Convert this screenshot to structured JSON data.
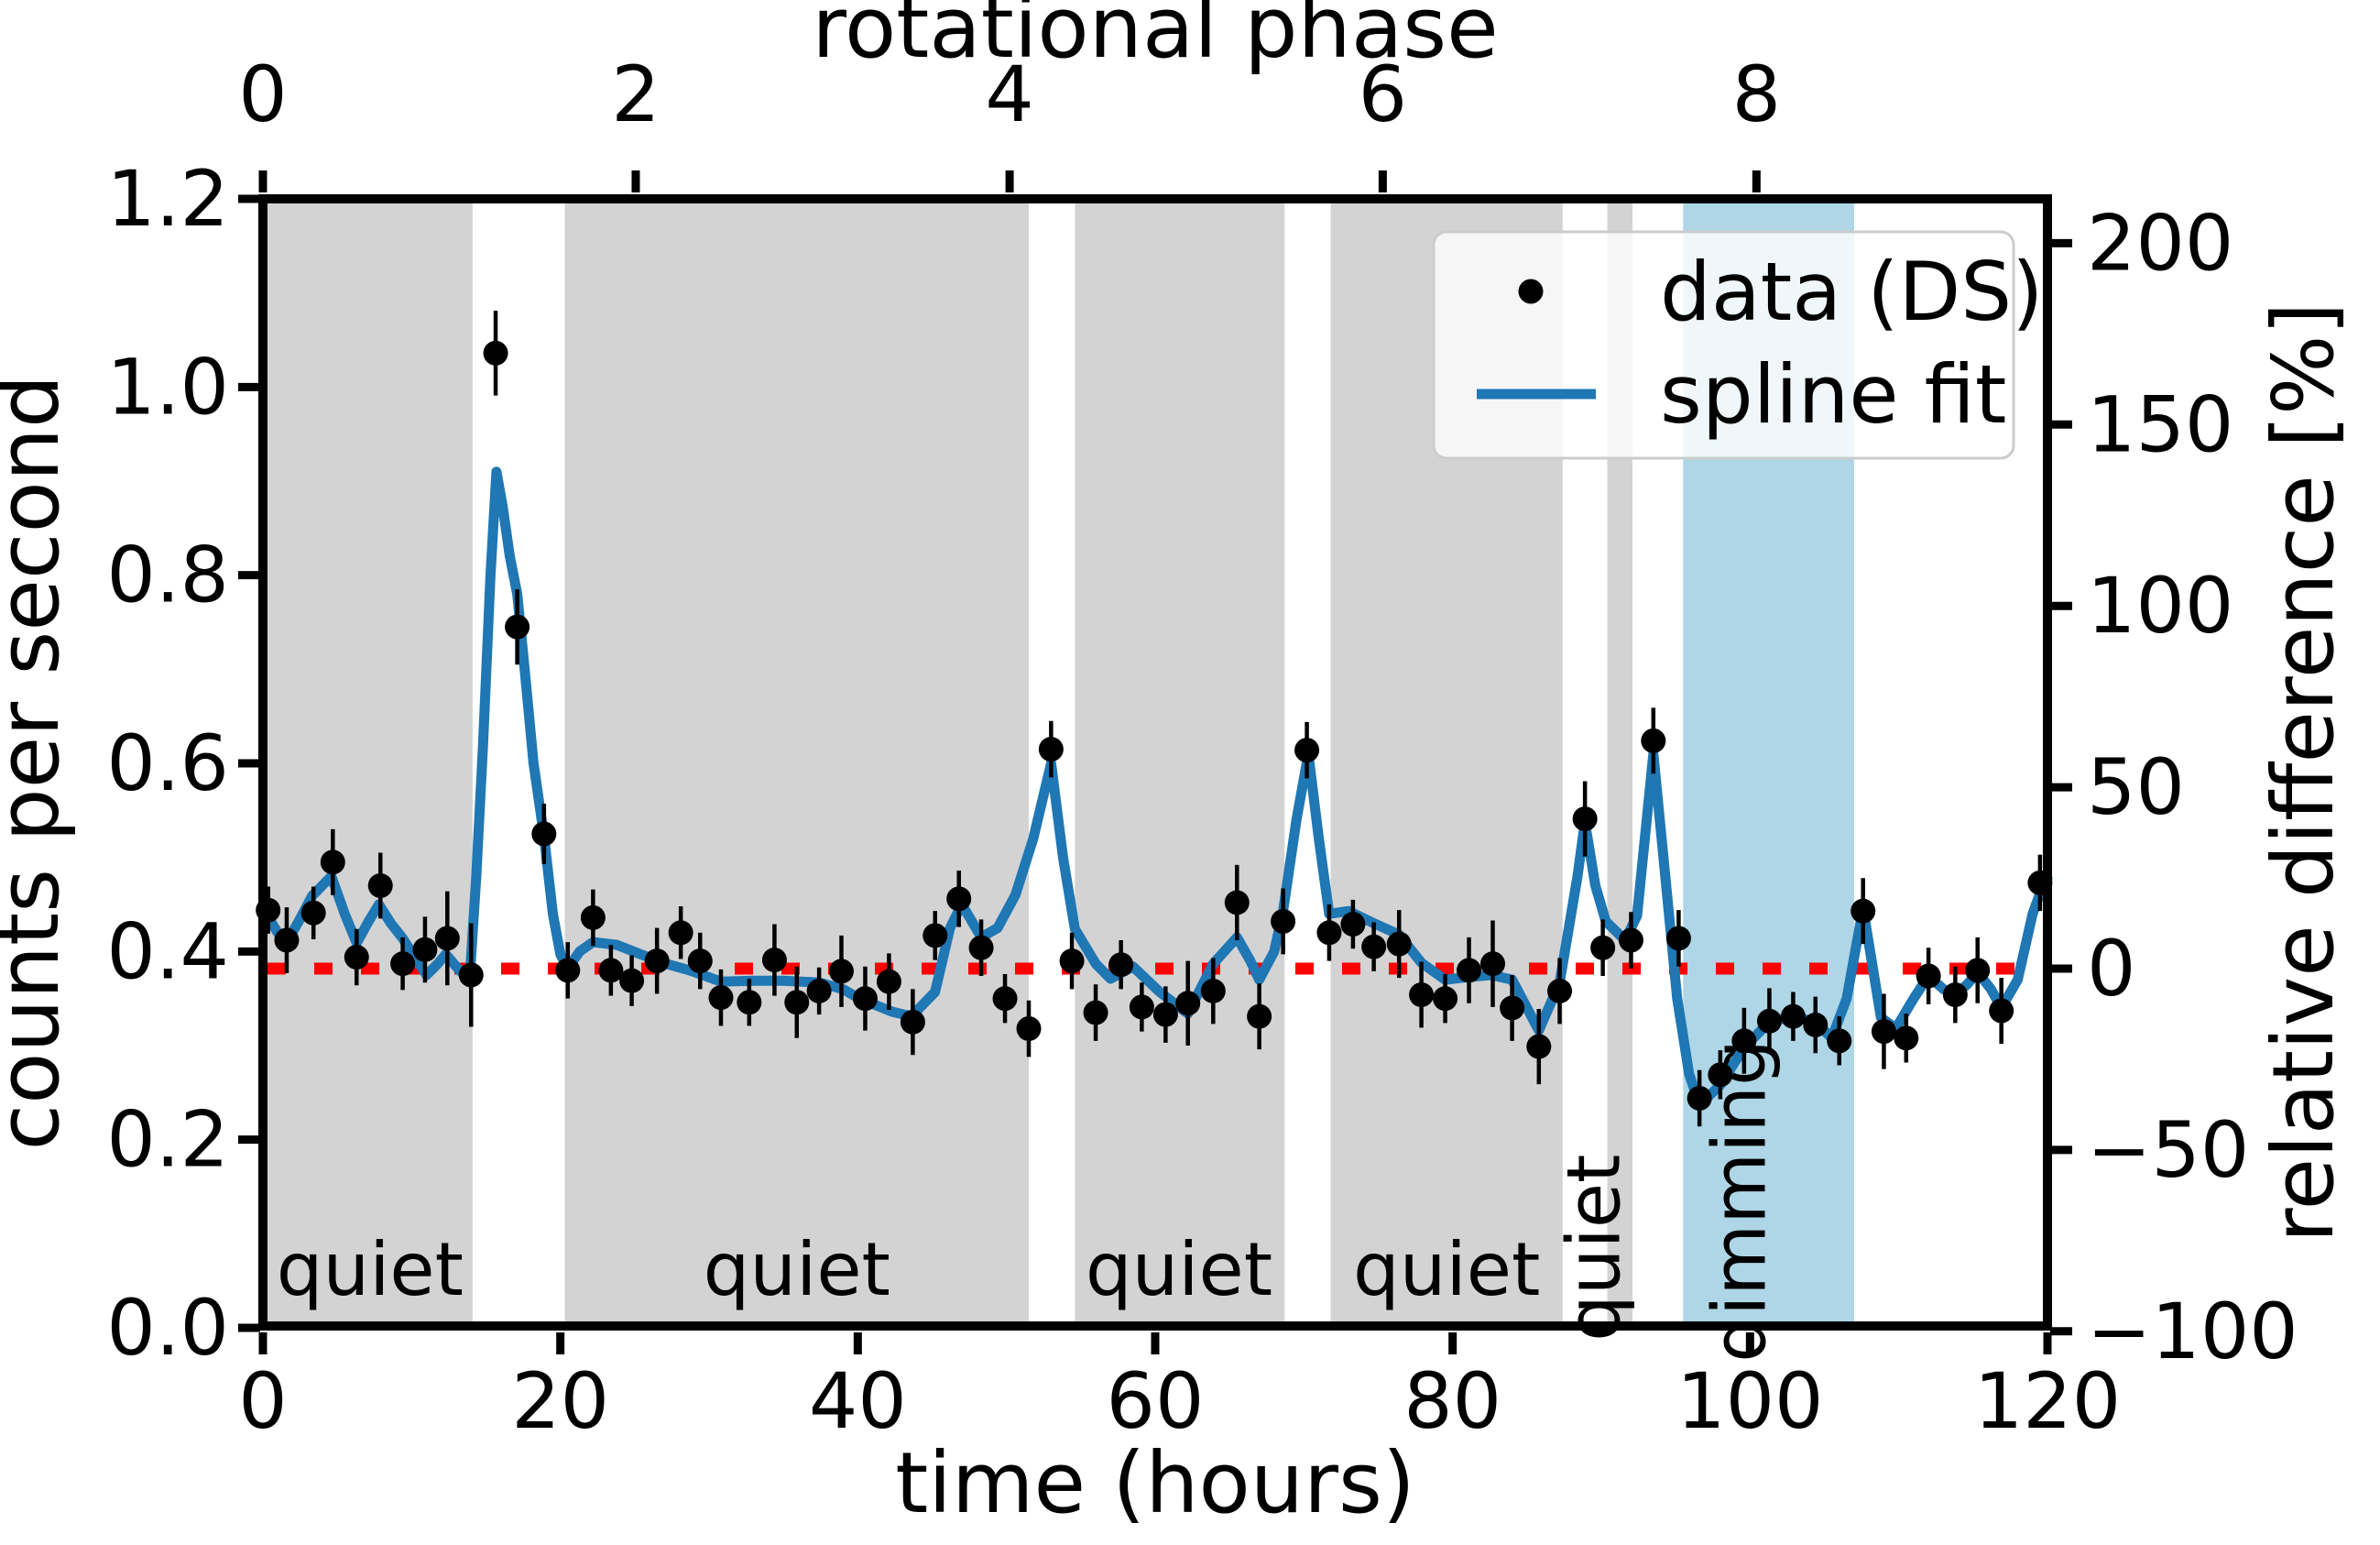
{
  "chart_data": {
    "type": "scatter",
    "title": "",
    "axes": {
      "bottom": {
        "title": "time (hours)",
        "range": [
          0,
          120
        ],
        "ticks": [
          0,
          20,
          40,
          60,
          80,
          100,
          120
        ]
      },
      "left": {
        "title": "counts per second",
        "range": [
          0.0,
          1.2
        ],
        "ticks": [
          {
            "label": "0.0",
            "v": 0.0
          },
          {
            "label": "0.2",
            "v": 0.2
          },
          {
            "label": "0.4",
            "v": 0.4
          },
          {
            "label": "0.6",
            "v": 0.6
          },
          {
            "label": "0.8",
            "v": 0.8
          },
          {
            "label": "1.0",
            "v": 1.0
          },
          {
            "label": "1.2",
            "v": 1.2
          }
        ]
      },
      "top": {
        "title": "rotational phase",
        "ticks": [
          {
            "label": "0",
            "t": 0
          },
          {
            "label": "2",
            "t": 25.07
          },
          {
            "label": "4",
            "t": 50.21
          },
          {
            "label": "6",
            "t": 75.3
          },
          {
            "label": "8",
            "t": 100.43
          }
        ]
      },
      "right": {
        "title": "relative difference [%]",
        "ticks": [
          {
            "label": "200",
            "p": 200
          },
          {
            "label": "150",
            "p": 150
          },
          {
            "label": "100",
            "p": 100
          },
          {
            "label": "50",
            "p": 50
          },
          {
            "label": "0",
            "p": 0
          },
          {
            "label": "−50",
            "p": -50
          },
          {
            "label": "−100",
            "p": -100
          }
        ]
      }
    },
    "zero_line": {
      "counts": 0.382,
      "percent": 0,
      "color": "#ff0000",
      "style": "dotted"
    },
    "bands": {
      "quiet_intervals": [
        [
          0.3,
          14.1
        ],
        [
          20.3,
          51.5
        ],
        [
          54.6,
          68.7
        ],
        [
          71.8,
          87.4
        ],
        [
          90.4,
          92.1
        ]
      ],
      "dimming_intervals": [
        [
          95.5,
          107.0
        ]
      ],
      "quiet_color": "#d3d3d3",
      "dimming_color": "#aed6e6",
      "labels": [
        {
          "text": "quiet",
          "t": 7.2,
          "c": 0.035,
          "rotate": false
        },
        {
          "text": "quiet",
          "t": 35.9,
          "c": 0.035,
          "rotate": false
        },
        {
          "text": "quiet",
          "t": 61.6,
          "c": 0.035,
          "rotate": false
        },
        {
          "text": "quiet",
          "t": 79.6,
          "c": 0.035,
          "rotate": false
        },
        {
          "text": "quiet",
          "t": 91.2,
          "c": 0.085,
          "rotate": true
        },
        {
          "text": "dimming",
          "t": 101.0,
          "c": 0.135,
          "rotate": true
        }
      ]
    },
    "legend": {
      "items": [
        {
          "label": "data (DS)",
          "type": "marker",
          "color": "#000000"
        },
        {
          "label": "spline fit",
          "type": "line",
          "color": "#1f77b4"
        }
      ]
    },
    "series": {
      "data": {
        "name": "data (DS)",
        "color": "#000000",
        "points": [
          [
            0.35,
            0.444,
            0.025
          ],
          [
            1.6,
            0.412,
            0.035
          ],
          [
            3.4,
            0.441,
            0.028
          ],
          [
            4.7,
            0.495,
            0.035
          ],
          [
            6.3,
            0.394,
            0.03
          ],
          [
            7.9,
            0.47,
            0.035
          ],
          [
            9.4,
            0.387,
            0.028
          ],
          [
            10.9,
            0.402,
            0.035
          ],
          [
            12.4,
            0.414,
            0.05
          ],
          [
            14.0,
            0.375,
            0.055
          ],
          [
            15.65,
            1.036,
            0.045
          ],
          [
            17.1,
            0.745,
            0.04
          ],
          [
            18.9,
            0.525,
            0.032
          ],
          [
            20.5,
            0.38,
            0.03
          ],
          [
            22.2,
            0.436,
            0.03
          ],
          [
            23.4,
            0.38,
            0.027
          ],
          [
            24.8,
            0.369,
            0.027
          ],
          [
            26.5,
            0.39,
            0.035
          ],
          [
            28.1,
            0.42,
            0.028
          ],
          [
            29.4,
            0.39,
            0.03
          ],
          [
            30.8,
            0.351,
            0.03
          ],
          [
            32.7,
            0.346,
            0.025
          ],
          [
            34.4,
            0.391,
            0.038
          ],
          [
            35.9,
            0.346,
            0.038
          ],
          [
            37.4,
            0.358,
            0.025
          ],
          [
            38.9,
            0.379,
            0.038
          ],
          [
            40.5,
            0.35,
            0.034
          ],
          [
            42.1,
            0.368,
            0.03
          ],
          [
            43.7,
            0.325,
            0.035
          ],
          [
            45.2,
            0.417,
            0.026
          ],
          [
            46.8,
            0.456,
            0.03
          ],
          [
            48.3,
            0.404,
            0.03
          ],
          [
            49.9,
            0.35,
            0.026
          ],
          [
            51.5,
            0.318,
            0.03
          ],
          [
            53.0,
            0.615,
            0.03
          ],
          [
            54.4,
            0.39,
            0.03
          ],
          [
            56.0,
            0.335,
            0.03
          ],
          [
            57.7,
            0.386,
            0.026
          ],
          [
            59.1,
            0.341,
            0.026
          ],
          [
            60.7,
            0.333,
            0.03
          ],
          [
            62.2,
            0.345,
            0.045
          ],
          [
            63.9,
            0.358,
            0.035
          ],
          [
            65.5,
            0.452,
            0.04
          ],
          [
            67.0,
            0.331,
            0.035
          ],
          [
            68.6,
            0.432,
            0.035
          ],
          [
            70.2,
            0.614,
            0.03
          ],
          [
            71.7,
            0.42,
            0.03
          ],
          [
            73.3,
            0.429,
            0.026
          ],
          [
            74.7,
            0.405,
            0.026
          ],
          [
            76.4,
            0.408,
            0.036
          ],
          [
            77.9,
            0.354,
            0.035
          ],
          [
            79.5,
            0.35,
            0.026
          ],
          [
            81.1,
            0.38,
            0.035
          ],
          [
            82.7,
            0.387,
            0.046
          ],
          [
            84.0,
            0.34,
            0.035
          ],
          [
            85.8,
            0.299,
            0.04
          ],
          [
            87.2,
            0.358,
            0.035
          ],
          [
            88.9,
            0.541,
            0.04
          ],
          [
            90.1,
            0.404,
            0.03
          ],
          [
            92.0,
            0.412,
            0.03
          ],
          [
            93.5,
            0.624,
            0.035
          ],
          [
            95.2,
            0.414,
            0.03
          ],
          [
            96.6,
            0.244,
            0.03
          ],
          [
            98.0,
            0.269,
            0.026
          ],
          [
            99.6,
            0.305,
            0.035
          ],
          [
            101.3,
            0.326,
            0.035
          ],
          [
            102.9,
            0.331,
            0.026
          ],
          [
            104.4,
            0.322,
            0.03
          ],
          [
            106.0,
            0.305,
            0.026
          ],
          [
            107.6,
            0.443,
            0.035
          ],
          [
            109.0,
            0.315,
            0.04
          ],
          [
            110.5,
            0.308,
            0.026
          ],
          [
            112.0,
            0.374,
            0.03
          ],
          [
            113.8,
            0.354,
            0.03
          ],
          [
            115.3,
            0.38,
            0.035
          ],
          [
            116.9,
            0.337,
            0.035
          ],
          [
            119.5,
            0.473,
            0.03
          ]
        ]
      },
      "spline": {
        "name": "spline fit",
        "color": "#1f77b4",
        "points": [
          [
            0,
            0.446
          ],
          [
            0.8,
            0.425
          ],
          [
            1.5,
            0.407
          ],
          [
            2.4,
            0.432
          ],
          [
            3.3,
            0.459
          ],
          [
            4.6,
            0.48
          ],
          [
            5.5,
            0.44
          ],
          [
            6.3,
            0.409
          ],
          [
            7.1,
            0.432
          ],
          [
            7.8,
            0.45
          ],
          [
            8.6,
            0.43
          ],
          [
            9.4,
            0.414
          ],
          [
            10.2,
            0.394
          ],
          [
            11,
            0.375
          ],
          [
            11.7,
            0.386
          ],
          [
            12.3,
            0.397
          ],
          [
            13.1,
            0.382
          ],
          [
            13.9,
            0.369
          ],
          [
            14.35,
            0.48
          ],
          [
            14.8,
            0.62
          ],
          [
            15.3,
            0.8
          ],
          [
            15.7,
            0.91
          ],
          [
            16.1,
            0.875
          ],
          [
            16.6,
            0.82
          ],
          [
            17.1,
            0.78
          ],
          [
            17.6,
            0.7
          ],
          [
            18.2,
            0.6
          ],
          [
            18.9,
            0.523
          ],
          [
            19.5,
            0.44
          ],
          [
            20,
            0.397
          ],
          [
            20.5,
            0.382
          ],
          [
            21.3,
            0.4
          ],
          [
            22.2,
            0.41
          ],
          [
            23.8,
            0.407
          ],
          [
            25.4,
            0.397
          ],
          [
            27.1,
            0.387
          ],
          [
            28.7,
            0.38
          ],
          [
            30.8,
            0.368
          ],
          [
            33,
            0.369
          ],
          [
            35,
            0.369
          ],
          [
            37.4,
            0.367
          ],
          [
            39,
            0.36
          ],
          [
            40.1,
            0.35
          ],
          [
            42.3,
            0.336
          ],
          [
            43.6,
            0.331
          ],
          [
            45.2,
            0.357
          ],
          [
            46.2,
            0.425
          ],
          [
            47,
            0.45
          ],
          [
            48.3,
            0.415
          ],
          [
            49.4,
            0.425
          ],
          [
            50.6,
            0.46
          ],
          [
            51.8,
            0.52
          ],
          [
            53,
            0.6
          ],
          [
            53.8,
            0.5
          ],
          [
            54.6,
            0.424
          ],
          [
            56,
            0.387
          ],
          [
            57,
            0.371
          ],
          [
            58.5,
            0.384
          ],
          [
            60.3,
            0.357
          ],
          [
            62.2,
            0.334
          ],
          [
            63.9,
            0.387
          ],
          [
            65.5,
            0.415
          ],
          [
            66.4,
            0.39
          ],
          [
            67,
            0.37
          ],
          [
            68,
            0.4
          ],
          [
            68.6,
            0.443
          ],
          [
            69.5,
            0.54
          ],
          [
            70.3,
            0.61
          ],
          [
            71,
            0.52
          ],
          [
            71.7,
            0.44
          ],
          [
            73,
            0.443
          ],
          [
            74.7,
            0.43
          ],
          [
            76.4,
            0.418
          ],
          [
            77.9,
            0.388
          ],
          [
            79.5,
            0.37
          ],
          [
            81.1,
            0.373
          ],
          [
            82.6,
            0.375
          ],
          [
            84,
            0.37
          ],
          [
            85.8,
            0.316
          ],
          [
            87.2,
            0.367
          ],
          [
            88.4,
            0.48
          ],
          [
            88.9,
            0.538
          ],
          [
            89.6,
            0.47
          ],
          [
            90.3,
            0.432
          ],
          [
            91.6,
            0.412
          ],
          [
            92.4,
            0.438
          ],
          [
            93.5,
            0.61
          ],
          [
            94.3,
            0.48
          ],
          [
            95.1,
            0.35
          ],
          [
            95.9,
            0.27
          ],
          [
            96.6,
            0.237
          ],
          [
            98,
            0.258
          ],
          [
            99.6,
            0.298
          ],
          [
            101.3,
            0.325
          ],
          [
            102.9,
            0.331
          ],
          [
            104.4,
            0.325
          ],
          [
            105.5,
            0.308
          ],
          [
            106.5,
            0.35
          ],
          [
            107.6,
            0.446
          ],
          [
            108.8,
            0.33
          ],
          [
            109.8,
            0.318
          ],
          [
            111,
            0.35
          ],
          [
            112,
            0.374
          ],
          [
            113,
            0.36
          ],
          [
            113.8,
            0.354
          ],
          [
            114.6,
            0.365
          ],
          [
            115.3,
            0.378
          ],
          [
            116.2,
            0.36
          ],
          [
            116.9,
            0.34
          ],
          [
            118,
            0.37
          ],
          [
            119,
            0.44
          ],
          [
            119.8,
            0.475
          ],
          [
            120,
            0.478
          ]
        ]
      }
    },
    "style": {
      "spine_color": "#000000",
      "marker_radius": 13.5,
      "spline_width": 11,
      "legend_border": "#cccccc"
    }
  }
}
